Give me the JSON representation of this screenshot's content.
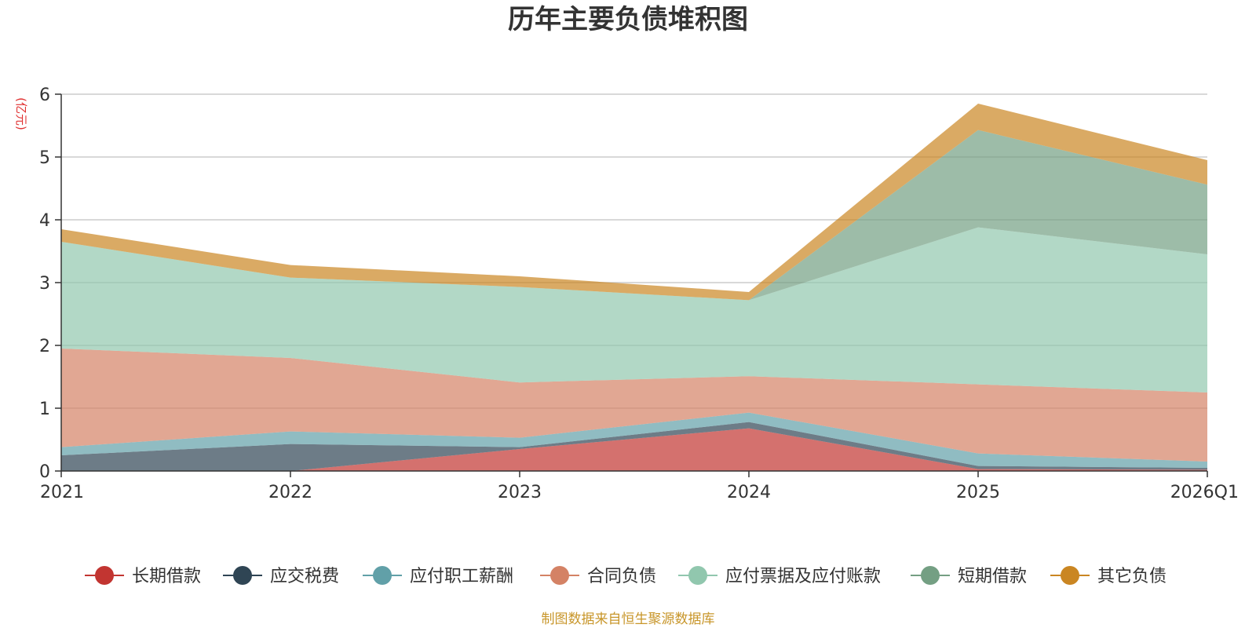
{
  "chart_data": {
    "type": "area",
    "stacked": true,
    "title": "历年主要负债堆积图",
    "unit_label": "(亿元)",
    "categories": [
      "2021",
      "2022",
      "2023",
      "2024",
      "2025",
      "2026Q1"
    ],
    "ylim": [
      0,
      6
    ],
    "yticks": [
      "0",
      "1",
      "2",
      "3",
      "4",
      "5",
      "6"
    ],
    "grid": true,
    "legend_position": "bottom",
    "series": [
      {
        "name": "长期借款",
        "color": "#c23531",
        "values": [
          0,
          0,
          0.35,
          0.68,
          0.03,
          0.02
        ]
      },
      {
        "name": "应交税费",
        "color": "#2f4554",
        "values": [
          0.25,
          0.43,
          0.03,
          0.1,
          0.05,
          0.03
        ]
      },
      {
        "name": "应付职工薪酬",
        "color": "#61a0a8",
        "values": [
          0.13,
          0.2,
          0.15,
          0.15,
          0.2,
          0.1
        ]
      },
      {
        "name": "合同负债",
        "color": "#d48265",
        "values": [
          1.57,
          1.17,
          0.88,
          0.58,
          1.1,
          1.1
        ]
      },
      {
        "name": "应付票据及应付账款",
        "color": "#91c7ae",
        "values": [
          1.7,
          1.28,
          1.52,
          1.21,
          2.5,
          2.2
        ]
      },
      {
        "name": "短期借款",
        "color": "#749f83",
        "values": [
          0,
          0,
          0,
          0,
          1.55,
          1.11
        ]
      },
      {
        "name": "其它负债",
        "color": "#ca8622",
        "values": [
          0.2,
          0.2,
          0.17,
          0.13,
          0.42,
          0.39
        ]
      }
    ],
    "source_note": "制图数据来自恒生聚源数据库"
  }
}
